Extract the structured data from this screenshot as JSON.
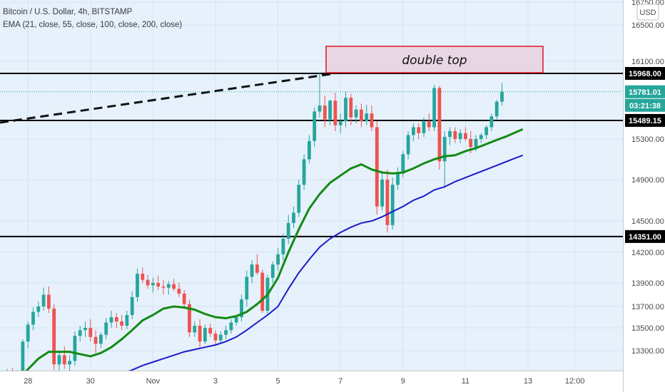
{
  "legend": {
    "line1": "Bitcoin / U.S. Dollar, 4h, BITSTAMP",
    "line2": "EMA (21, close, 55, close, 100, close, 200, close)"
  },
  "currency_badge": "USD",
  "countdown": "03:21:38",
  "annotation": "double top",
  "chart_data": {
    "type": "candlestick",
    "y_axis_ticks": [
      {
        "v": 16750,
        "label": "16750.00"
      },
      {
        "v": 16500,
        "label": "16500.00"
      },
      {
        "v": 16100,
        "label": "16100.00"
      },
      {
        "v": 15300,
        "label": "15300.00"
      },
      {
        "v": 14900,
        "label": "14900.00"
      },
      {
        "v": 14500,
        "label": "14500.00"
      },
      {
        "v": 14200,
        "label": "14200.00"
      },
      {
        "v": 13900,
        "label": "13900.00"
      },
      {
        "v": 13700,
        "label": "13700.00"
      },
      {
        "v": 13500,
        "label": "13500.00"
      },
      {
        "v": 13300,
        "label": "13300.00"
      }
    ],
    "x_axis_ticks": [
      {
        "i": 4,
        "label": "28"
      },
      {
        "i": 16,
        "label": "30"
      },
      {
        "i": 28,
        "label": "Nov"
      },
      {
        "i": 40,
        "label": "3"
      },
      {
        "i": 52,
        "label": "5"
      },
      {
        "i": 64,
        "label": "7"
      },
      {
        "i": 76,
        "label": "9"
      },
      {
        "i": 88,
        "label": "11"
      },
      {
        "i": 100,
        "label": "13"
      },
      {
        "i": 109,
        "label": "12:00"
      }
    ],
    "horizontal_levels": [
      {
        "v": 15968,
        "label": "15968.00"
      },
      {
        "v": 15489.15,
        "label": "15489.15"
      },
      {
        "v": 14351,
        "label": "14351.00"
      }
    ],
    "last_price": {
      "v": 15781.01,
      "label": "15781.01"
    },
    "colors": {
      "up": "#26a69a",
      "down": "#ef5350",
      "ema21": "#138a13",
      "ema55": "#1a1acb",
      "level": "#000000",
      "trend": "#111111",
      "background": "#e6f1fc"
    },
    "candles": [
      [
        13080,
        13140,
        13040,
        13110
      ],
      [
        13110,
        13150,
        13070,
        13090
      ],
      [
        13090,
        13130,
        13020,
        13120
      ],
      [
        13120,
        13400,
        13090,
        13380
      ],
      [
        13380,
        13560,
        13320,
        13530
      ],
      [
        13530,
        13690,
        13480,
        13650
      ],
      [
        13650,
        13740,
        13600,
        13700
      ],
      [
        13700,
        13860,
        13660,
        13800
      ],
      [
        13800,
        13870,
        13640,
        13680
      ],
      [
        13680,
        13720,
        13130,
        13180
      ],
      [
        13180,
        13300,
        13100,
        13260
      ],
      [
        13260,
        13340,
        13140,
        13180
      ],
      [
        13180,
        13260,
        13090,
        13210
      ],
      [
        13210,
        13470,
        13170,
        13430
      ],
      [
        13430,
        13520,
        13380,
        13480
      ],
      [
        13480,
        13560,
        13420,
        13500
      ],
      [
        13500,
        13580,
        13380,
        13420
      ],
      [
        13420,
        13480,
        13280,
        13360
      ],
      [
        13360,
        13460,
        13320,
        13440
      ],
      [
        13440,
        13590,
        13400,
        13550
      ],
      [
        13550,
        13660,
        13500,
        13600
      ],
      [
        13600,
        13640,
        13500,
        13560
      ],
      [
        13560,
        13620,
        13480,
        13520
      ],
      [
        13520,
        13660,
        13490,
        13620
      ],
      [
        13620,
        13830,
        13580,
        13780
      ],
      [
        13780,
        14040,
        13740,
        13990
      ],
      [
        13990,
        14050,
        13900,
        13930
      ],
      [
        13930,
        13980,
        13850,
        13880
      ],
      [
        13880,
        13950,
        13820,
        13900
      ],
      [
        13900,
        13970,
        13840,
        13870
      ],
      [
        13870,
        13930,
        13800,
        13860
      ],
      [
        13860,
        13920,
        13800,
        13890
      ],
      [
        13890,
        13940,
        13830,
        13850
      ],
      [
        13850,
        13900,
        13780,
        13810
      ],
      [
        13810,
        13840,
        13680,
        13720
      ],
      [
        13720,
        13760,
        13420,
        13460
      ],
      [
        13460,
        13560,
        13420,
        13520
      ],
      [
        13520,
        13580,
        13330,
        13380
      ],
      [
        13380,
        13530,
        13360,
        13500
      ],
      [
        13500,
        13540,
        13420,
        13450
      ],
      [
        13450,
        13480,
        13340,
        13390
      ],
      [
        13390,
        13470,
        13360,
        13440
      ],
      [
        13440,
        13520,
        13400,
        13480
      ],
      [
        13480,
        13580,
        13450,
        13550
      ],
      [
        13550,
        13620,
        13520,
        13600
      ],
      [
        13600,
        13800,
        13560,
        13760
      ],
      [
        13760,
        14020,
        13700,
        13960
      ],
      [
        13960,
        14120,
        13900,
        14080
      ],
      [
        14080,
        14180,
        13980,
        14000
      ],
      [
        14000,
        14030,
        13640,
        13660
      ],
      [
        13660,
        13980,
        13630,
        13950
      ],
      [
        13950,
        14110,
        13900,
        14080
      ],
      [
        14080,
        14240,
        14020,
        14180
      ],
      [
        14180,
        14380,
        14120,
        14330
      ],
      [
        14330,
        14560,
        14280,
        14480
      ],
      [
        14480,
        14640,
        14430,
        14580
      ],
      [
        14580,
        14900,
        14540,
        14850
      ],
      [
        14850,
        15150,
        14800,
        15100
      ],
      [
        15100,
        15340,
        15060,
        15280
      ],
      [
        15280,
        15620,
        15220,
        15580
      ],
      [
        15580,
        15980,
        15520,
        15640
      ],
      [
        15640,
        15740,
        15420,
        15500
      ],
      [
        15500,
        15700,
        15440,
        15690
      ],
      [
        15690,
        15770,
        15380,
        15440
      ],
      [
        15440,
        15560,
        15360,
        15480
      ],
      [
        15480,
        15780,
        15420,
        15720
      ],
      [
        15720,
        15760,
        15440,
        15520
      ],
      [
        15520,
        15640,
        15460,
        15600
      ],
      [
        15600,
        15660,
        15420,
        15480
      ],
      [
        15480,
        15650,
        15440,
        15560
      ],
      [
        15560,
        15640,
        15380,
        15420
      ],
      [
        15420,
        15480,
        14560,
        14640
      ],
      [
        14640,
        14960,
        14600,
        14900
      ],
      [
        14900,
        15000,
        14390,
        14460
      ],
      [
        14460,
        14920,
        14420,
        14850
      ],
      [
        14850,
        15020,
        14800,
        14960
      ],
      [
        14960,
        15180,
        14920,
        15150
      ],
      [
        15150,
        15380,
        15100,
        15340
      ],
      [
        15340,
        15460,
        15280,
        15420
      ],
      [
        15420,
        15460,
        15300,
        15360
      ],
      [
        15360,
        15520,
        15320,
        15480
      ],
      [
        15480,
        15560,
        15380,
        15420
      ],
      [
        15420,
        15850,
        15380,
        15820
      ],
      [
        15820,
        15840,
        15000,
        15080
      ],
      [
        15080,
        15380,
        14820,
        15320
      ],
      [
        15320,
        15420,
        15240,
        15380
      ],
      [
        15380,
        15420,
        15260,
        15300
      ],
      [
        15300,
        15400,
        15260,
        15360
      ],
      [
        15360,
        15420,
        15280,
        15300
      ],
      [
        15300,
        15380,
        15160,
        15220
      ],
      [
        15220,
        15340,
        15180,
        15300
      ],
      [
        15300,
        15360,
        15260,
        15340
      ],
      [
        15340,
        15440,
        15300,
        15420
      ],
      [
        15420,
        15560,
        15380,
        15530
      ],
      [
        15530,
        15700,
        15500,
        15680
      ],
      [
        15680,
        15870,
        15640,
        15781
      ]
    ],
    "ema21": [
      [
        0,
        12940
      ],
      [
        3,
        13090
      ],
      [
        6,
        13230
      ],
      [
        8,
        13290
      ],
      [
        10,
        13290
      ],
      [
        12,
        13290
      ],
      [
        14,
        13270
      ],
      [
        16,
        13250
      ],
      [
        18,
        13280
      ],
      [
        20,
        13330
      ],
      [
        22,
        13400
      ],
      [
        24,
        13480
      ],
      [
        26,
        13570
      ],
      [
        28,
        13620
      ],
      [
        30,
        13680
      ],
      [
        32,
        13700
      ],
      [
        34,
        13690
      ],
      [
        36,
        13670
      ],
      [
        38,
        13630
      ],
      [
        40,
        13600
      ],
      [
        42,
        13590
      ],
      [
        44,
        13610
      ],
      [
        46,
        13650
      ],
      [
        48,
        13720
      ],
      [
        50,
        13800
      ],
      [
        52,
        13950
      ],
      [
        54,
        14200
      ],
      [
        56,
        14420
      ],
      [
        58,
        14620
      ],
      [
        60,
        14760
      ],
      [
        62,
        14870
      ],
      [
        64,
        14940
      ],
      [
        66,
        15010
      ],
      [
        68,
        15050
      ],
      [
        70,
        15000
      ],
      [
        72,
        14970
      ],
      [
        74,
        14960
      ],
      [
        76,
        14970
      ],
      [
        78,
        15010
      ],
      [
        80,
        15060
      ],
      [
        82,
        15100
      ],
      [
        84,
        15130
      ],
      [
        86,
        15140
      ],
      [
        88,
        15180
      ],
      [
        90,
        15210
      ],
      [
        92,
        15250
      ],
      [
        94,
        15290
      ],
      [
        96,
        15330
      ],
      [
        99,
        15400
      ]
    ],
    "ema55": [
      [
        22,
        13100
      ],
      [
        24,
        13130
      ],
      [
        26,
        13170
      ],
      [
        28,
        13200
      ],
      [
        30,
        13230
      ],
      [
        32,
        13260
      ],
      [
        34,
        13290
      ],
      [
        36,
        13310
      ],
      [
        38,
        13330
      ],
      [
        40,
        13350
      ],
      [
        42,
        13380
      ],
      [
        44,
        13420
      ],
      [
        46,
        13480
      ],
      [
        48,
        13550
      ],
      [
        50,
        13620
      ],
      [
        52,
        13700
      ],
      [
        54,
        13850
      ],
      [
        56,
        14000
      ],
      [
        58,
        14130
      ],
      [
        60,
        14250
      ],
      [
        62,
        14330
      ],
      [
        64,
        14390
      ],
      [
        66,
        14440
      ],
      [
        68,
        14480
      ],
      [
        70,
        14500
      ],
      [
        72,
        14540
      ],
      [
        74,
        14590
      ],
      [
        76,
        14640
      ],
      [
        78,
        14700
      ],
      [
        80,
        14740
      ],
      [
        82,
        14800
      ],
      [
        84,
        14830
      ],
      [
        86,
        14880
      ],
      [
        88,
        14920
      ],
      [
        90,
        14960
      ],
      [
        92,
        15000
      ],
      [
        94,
        15040
      ],
      [
        96,
        15080
      ],
      [
        99,
        15140
      ]
    ]
  }
}
